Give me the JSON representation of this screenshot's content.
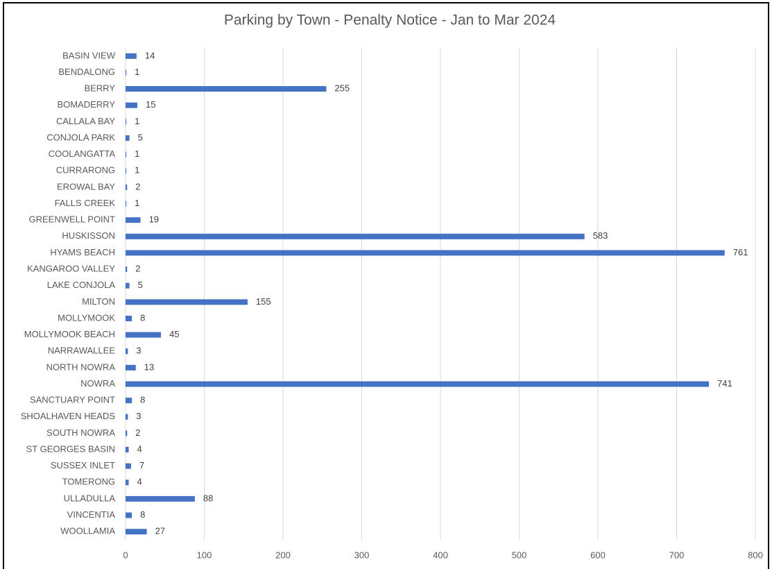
{
  "chart_data": {
    "type": "bar",
    "orientation": "horizontal",
    "title": "Parking by Town - Penalty Notice - Jan to Mar 2024",
    "categories": [
      "BASIN VIEW",
      "BENDALONG",
      "BERRY",
      "BOMADERRY",
      "CALLALA BAY",
      "CONJOLA PARK",
      "COOLANGATTA",
      "CURRARONG",
      "EROWAL BAY",
      "FALLS CREEK",
      "GREENWELL POINT",
      "HUSKISSON",
      "HYAMS BEACH",
      "KANGAROO VALLEY",
      "LAKE CONJOLA",
      "MILTON",
      "MOLLYMOOK",
      "MOLLYMOOK BEACH",
      "NARRAWALLEE",
      "NORTH NOWRA",
      "NOWRA",
      "SANCTUARY POINT",
      "SHOALHAVEN HEADS",
      "SOUTH NOWRA",
      "ST GEORGES BASIN",
      "SUSSEX INLET",
      "TOMERONG",
      "ULLADULLA",
      "VINCENTIA",
      "WOOLLAMIA"
    ],
    "values": [
      14,
      1,
      255,
      15,
      1,
      5,
      1,
      1,
      2,
      1,
      19,
      583,
      761,
      2,
      5,
      155,
      8,
      45,
      3,
      13,
      741,
      8,
      3,
      2,
      4,
      7,
      4,
      88,
      8,
      27
    ],
    "color": "#4472c4",
    "xlim": [
      0,
      800
    ],
    "xticks": [
      0,
      100,
      200,
      300,
      400,
      500,
      600,
      700,
      800
    ],
    "grid": true
  }
}
